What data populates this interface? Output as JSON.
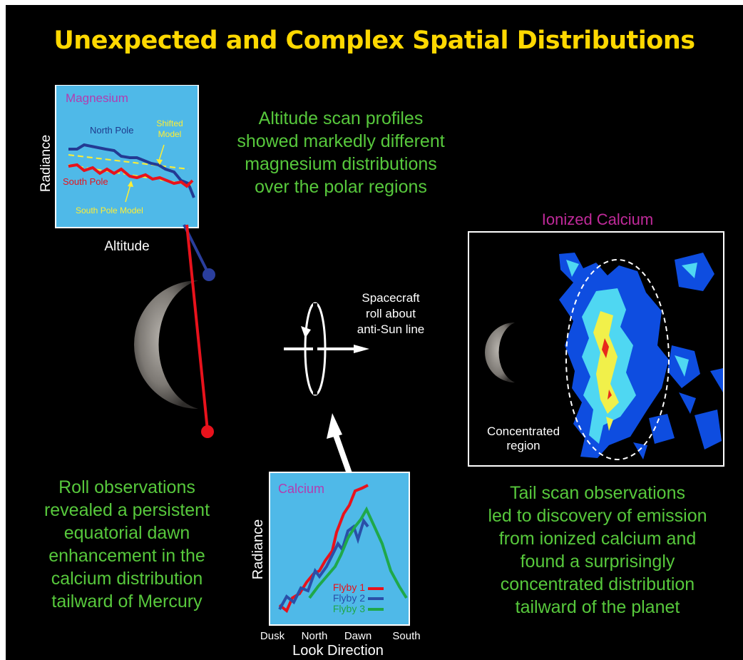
{
  "title": "Unexpected and Complex Spatial Distributions",
  "magnesium_panel": {
    "title": "Magnesium",
    "north_pole": "North Pole",
    "south_pole": "South Pole",
    "shifted_model_line1": "Shifted",
    "shifted_model_line2": "Model",
    "south_pole_model": "South Pole Model",
    "ylabel": "Radiance",
    "xlabel": "Altitude"
  },
  "altitude_caption": [
    "Altitude scan profiles",
    "showed markedly different",
    "magnesium distributions",
    "over the polar regions"
  ],
  "roll": {
    "line1": "Spacecraft",
    "line2": "roll about",
    "line3": "anti-Sun line"
  },
  "ionized_panel": {
    "title": "Ionized Calcium",
    "region_line1": "Concentrated",
    "region_line2": "region"
  },
  "roll_caption": [
    "Roll observations",
    "revealed a persistent",
    "equatorial dawn",
    "enhancement in the",
    "calcium distribution",
    "tailward of Mercury"
  ],
  "calcium_panel": {
    "title": "Calcium",
    "ylabel": "Radiance",
    "xlabel": "Look Direction",
    "ticks": [
      "Dusk",
      "North",
      "Dawn",
      "South"
    ],
    "legend": [
      "Flyby 1",
      "Flyby 2",
      "Flyby 3"
    ]
  },
  "tail_caption": [
    "Tail scan observations",
    "led to discovery of emission",
    "from ionized calcium and",
    "found a surprisingly",
    "concentrated distribution",
    "tailward of the planet"
  ],
  "colors": {
    "title": "#ffd800",
    "caption": "#57c83c",
    "panel": "#4fb9e8",
    "magenta": "#c02a9a",
    "flyby1": "#e8121c",
    "flyby2": "#2a4fa8",
    "flyby3": "#1fa84a"
  }
}
